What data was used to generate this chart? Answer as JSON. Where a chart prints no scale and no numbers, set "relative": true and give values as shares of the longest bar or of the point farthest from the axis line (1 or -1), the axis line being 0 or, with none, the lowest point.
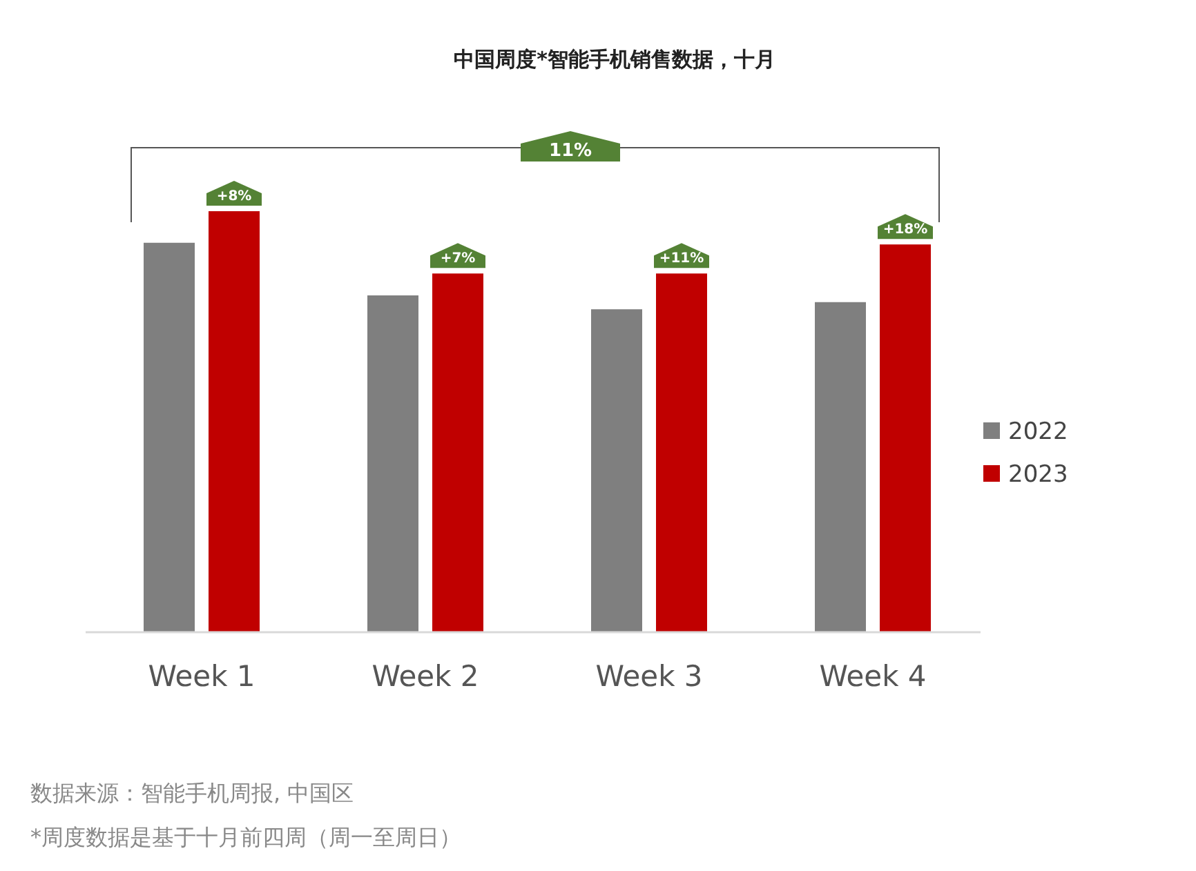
{
  "chart_data": {
    "type": "bar",
    "title": "中国周度*智能手机销售数据，十月",
    "relative": true,
    "legend": "right",
    "categories": [
      "Week 1",
      "Week 2",
      "Week 3",
      "Week 4"
    ],
    "series": [
      {
        "name": "2022",
        "color": "#7f7f7f",
        "values": [
          0.925,
          0.8,
          0.767,
          0.784
        ]
      },
      {
        "name": "2023",
        "color": "#c00000",
        "values": [
          1,
          0.852,
          0.852,
          0.921
        ]
      }
    ],
    "annotations": [
      {
        "text": "+8%",
        "x": "Week 1",
        "y": 1
      },
      {
        "text": "+7%",
        "x": "Week 2",
        "y": 0.852
      },
      {
        "text": "+11%",
        "x": "Week 3",
        "y": 0.852
      },
      {
        "text": "+18%",
        "x": "Week 4",
        "y": 0.921
      },
      {
        "text": "11%"
      },
      "数据来源：智能手机周报, 中国区",
      "*周度数据是基于十月前四周（周一至周日）"
    ]
  }
}
